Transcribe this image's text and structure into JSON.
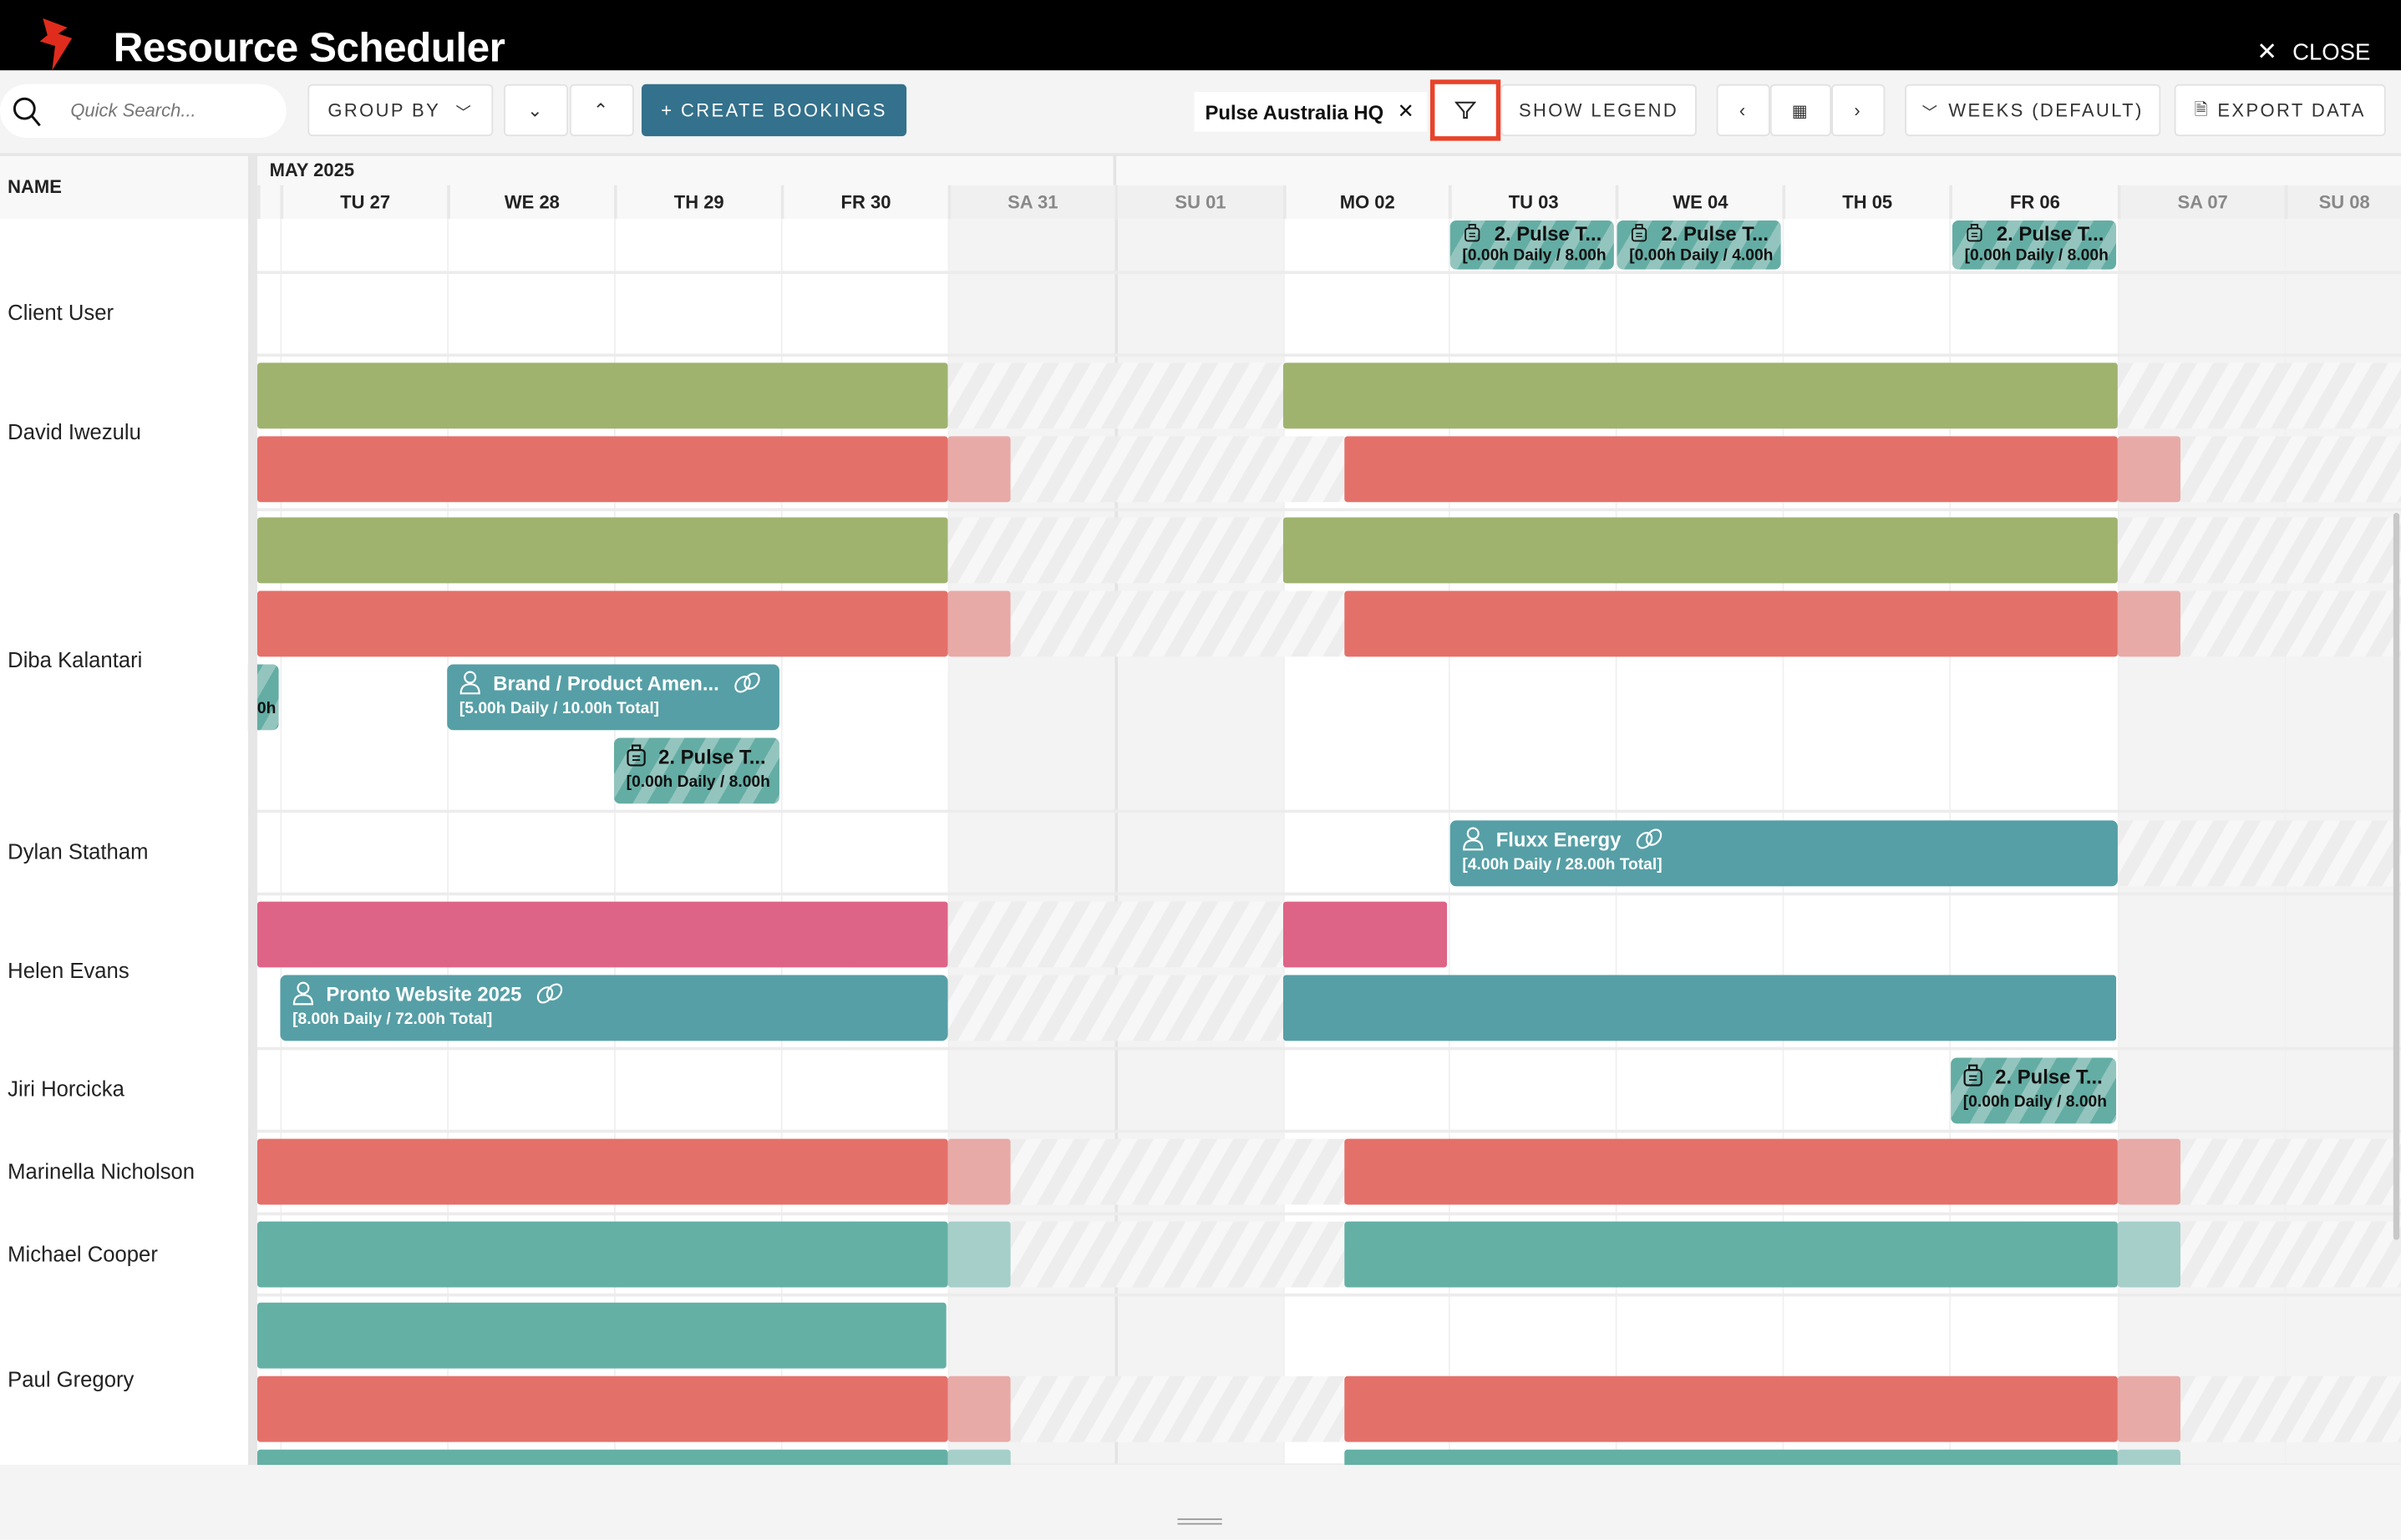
{
  "app": {
    "title": "Resource Scheduler",
    "close_label": "CLOSE",
    "logo_icon": "lightning-bolt-icon"
  },
  "toolbar": {
    "search_placeholder": "Quick Search...",
    "group_by": "GROUP BY",
    "create_bookings": "+ CREATE BOOKINGS",
    "filter_chip": "Pulse Australia HQ",
    "show_legend": "SHOW LEGEND",
    "view": "WEEKS (DEFAULT)",
    "export": "EXPORT DATA"
  },
  "grid": {
    "name_header": "NAME",
    "month": "MAY 2025",
    "days": [
      "TU 27",
      "WE 28",
      "TH 29",
      "FR 30",
      "SA 31",
      "SU 01",
      "MO 02",
      "TU 03",
      "WE 04",
      "TH 05",
      "FR 06",
      "SA 07",
      "SU 08"
    ],
    "resources": [
      "Client User",
      "David Iwezulu",
      "Diba Kalantari",
      "Dylan Statham",
      "Helen Evans",
      "Jiri Horcicka",
      "Marinella Nicholson",
      "Michael Cooper",
      "Paul Gregory"
    ]
  },
  "bookings": {
    "top_tu03": {
      "title": "2. Pulse T...",
      "detail": "[0.00h Daily / 8.00h"
    },
    "top_we04": {
      "title": "2. Pulse T...",
      "detail": "[0.00h Daily / 4.00h"
    },
    "top_fr06": {
      "title": "2. Pulse T...",
      "detail": "[0.00h Daily / 8.00h"
    },
    "diba_partial": {
      "detail": "0h"
    },
    "diba_brand": {
      "title": "Brand / Product Amen...",
      "detail": "[5.00h Daily / 10.00h Total]"
    },
    "diba_pulse": {
      "title": "2. Pulse T...",
      "detail": "[0.00h Daily / 8.00h"
    },
    "dylan_fluxx": {
      "title": "Fluxx Energy",
      "detail": "[4.00h Daily / 28.00h Total]"
    },
    "helen_pronto": {
      "title": "Pronto Website 2025",
      "detail": "[8.00h Daily / 72.00h Total]"
    },
    "jiri_pulse": {
      "title": "2. Pulse T...",
      "detail": "[0.00h Daily / 8.00h"
    }
  },
  "colors": {
    "brand_red": "#e02c1c",
    "create_button": "#33718c",
    "green": "#9fb36f",
    "red": "#e4706a",
    "pink": "#de6487",
    "teal": "#569fa6",
    "teal_light": "#64b0a5",
    "filter_highlight": "#e8432a"
  }
}
